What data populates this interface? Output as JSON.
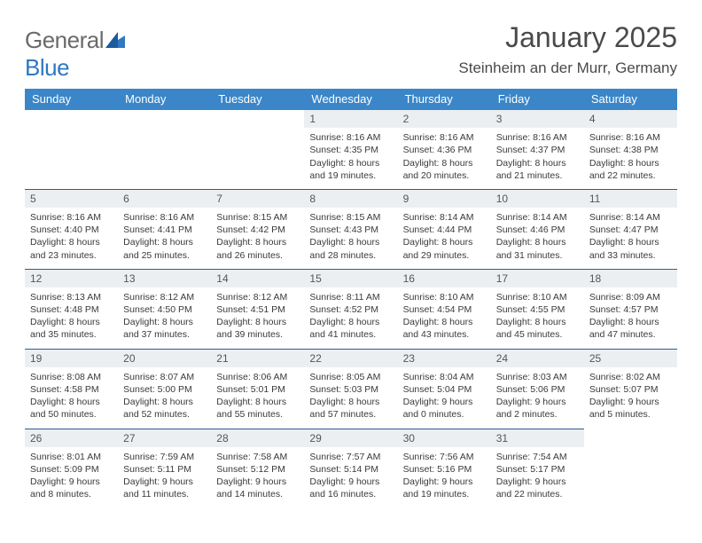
{
  "logo": {
    "general": "General",
    "blue": "Blue"
  },
  "title": "January 2025",
  "location": "Steinheim an der Murr, Germany",
  "colors": {
    "header_bg": "#3a86c8",
    "daynum_bg": "#eceff2",
    "border": "#2a5f8f",
    "logo_general": "#6a6a6a",
    "logo_blue": "#2f78c2"
  },
  "weekdays": [
    "Sunday",
    "Monday",
    "Tuesday",
    "Wednesday",
    "Thursday",
    "Friday",
    "Saturday"
  ],
  "weeks": [
    [
      null,
      null,
      null,
      {
        "n": "1",
        "sunrise": "8:16 AM",
        "sunset": "4:35 PM",
        "dl": "Daylight: 8 hours and 19 minutes."
      },
      {
        "n": "2",
        "sunrise": "8:16 AM",
        "sunset": "4:36 PM",
        "dl": "Daylight: 8 hours and 20 minutes."
      },
      {
        "n": "3",
        "sunrise": "8:16 AM",
        "sunset": "4:37 PM",
        "dl": "Daylight: 8 hours and 21 minutes."
      },
      {
        "n": "4",
        "sunrise": "8:16 AM",
        "sunset": "4:38 PM",
        "dl": "Daylight: 8 hours and 22 minutes."
      }
    ],
    [
      {
        "n": "5",
        "sunrise": "8:16 AM",
        "sunset": "4:40 PM",
        "dl": "Daylight: 8 hours and 23 minutes."
      },
      {
        "n": "6",
        "sunrise": "8:16 AM",
        "sunset": "4:41 PM",
        "dl": "Daylight: 8 hours and 25 minutes."
      },
      {
        "n": "7",
        "sunrise": "8:15 AM",
        "sunset": "4:42 PM",
        "dl": "Daylight: 8 hours and 26 minutes."
      },
      {
        "n": "8",
        "sunrise": "8:15 AM",
        "sunset": "4:43 PM",
        "dl": "Daylight: 8 hours and 28 minutes."
      },
      {
        "n": "9",
        "sunrise": "8:14 AM",
        "sunset": "4:44 PM",
        "dl": "Daylight: 8 hours and 29 minutes."
      },
      {
        "n": "10",
        "sunrise": "8:14 AM",
        "sunset": "4:46 PM",
        "dl": "Daylight: 8 hours and 31 minutes."
      },
      {
        "n": "11",
        "sunrise": "8:14 AM",
        "sunset": "4:47 PM",
        "dl": "Daylight: 8 hours and 33 minutes."
      }
    ],
    [
      {
        "n": "12",
        "sunrise": "8:13 AM",
        "sunset": "4:48 PM",
        "dl": "Daylight: 8 hours and 35 minutes."
      },
      {
        "n": "13",
        "sunrise": "8:12 AM",
        "sunset": "4:50 PM",
        "dl": "Daylight: 8 hours and 37 minutes."
      },
      {
        "n": "14",
        "sunrise": "8:12 AM",
        "sunset": "4:51 PM",
        "dl": "Daylight: 8 hours and 39 minutes."
      },
      {
        "n": "15",
        "sunrise": "8:11 AM",
        "sunset": "4:52 PM",
        "dl": "Daylight: 8 hours and 41 minutes."
      },
      {
        "n": "16",
        "sunrise": "8:10 AM",
        "sunset": "4:54 PM",
        "dl": "Daylight: 8 hours and 43 minutes."
      },
      {
        "n": "17",
        "sunrise": "8:10 AM",
        "sunset": "4:55 PM",
        "dl": "Daylight: 8 hours and 45 minutes."
      },
      {
        "n": "18",
        "sunrise": "8:09 AM",
        "sunset": "4:57 PM",
        "dl": "Daylight: 8 hours and 47 minutes."
      }
    ],
    [
      {
        "n": "19",
        "sunrise": "8:08 AM",
        "sunset": "4:58 PM",
        "dl": "Daylight: 8 hours and 50 minutes."
      },
      {
        "n": "20",
        "sunrise": "8:07 AM",
        "sunset": "5:00 PM",
        "dl": "Daylight: 8 hours and 52 minutes."
      },
      {
        "n": "21",
        "sunrise": "8:06 AM",
        "sunset": "5:01 PM",
        "dl": "Daylight: 8 hours and 55 minutes."
      },
      {
        "n": "22",
        "sunrise": "8:05 AM",
        "sunset": "5:03 PM",
        "dl": "Daylight: 8 hours and 57 minutes."
      },
      {
        "n": "23",
        "sunrise": "8:04 AM",
        "sunset": "5:04 PM",
        "dl": "Daylight: 9 hours and 0 minutes."
      },
      {
        "n": "24",
        "sunrise": "8:03 AM",
        "sunset": "5:06 PM",
        "dl": "Daylight: 9 hours and 2 minutes."
      },
      {
        "n": "25",
        "sunrise": "8:02 AM",
        "sunset": "5:07 PM",
        "dl": "Daylight: 9 hours and 5 minutes."
      }
    ],
    [
      {
        "n": "26",
        "sunrise": "8:01 AM",
        "sunset": "5:09 PM",
        "dl": "Daylight: 9 hours and 8 minutes."
      },
      {
        "n": "27",
        "sunrise": "7:59 AM",
        "sunset": "5:11 PM",
        "dl": "Daylight: 9 hours and 11 minutes."
      },
      {
        "n": "28",
        "sunrise": "7:58 AM",
        "sunset": "5:12 PM",
        "dl": "Daylight: 9 hours and 14 minutes."
      },
      {
        "n": "29",
        "sunrise": "7:57 AM",
        "sunset": "5:14 PM",
        "dl": "Daylight: 9 hours and 16 minutes."
      },
      {
        "n": "30",
        "sunrise": "7:56 AM",
        "sunset": "5:16 PM",
        "dl": "Daylight: 9 hours and 19 minutes."
      },
      {
        "n": "31",
        "sunrise": "7:54 AM",
        "sunset": "5:17 PM",
        "dl": "Daylight: 9 hours and 22 minutes."
      },
      null
    ]
  ]
}
